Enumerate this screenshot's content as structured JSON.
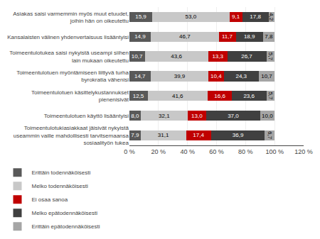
{
  "chart_data": {
    "type": "bar",
    "orientation": "horizontal",
    "stacked": true,
    "data_labels": true,
    "grid": true,
    "legend": "bottom",
    "categories": [
      "Asiakas saisi varmemmin myös muut etuudet,\njoihin hän on oikeutettu",
      "Kansalaisten välinen yhdenvertaisuus lisääntyisi",
      "Toimeentulotukea saisi nykyistä useampi siihen\nlain mukaan oikeutettu",
      "Toimeentulotuen myöntämiseen liittyvä turha\nbyrokratia vähenisi",
      "Toimeentulotuen käsittelykustannukset\npienenisivät",
      "Toimeentulotuen käyttö lisääntyisi",
      "Toimeentulotukiasiakkaat jäisivät nykyistä\nuseammin vaille mahdollisesti tarvitsemaansa\nsosiaalityön tukea"
    ],
    "series": [
      {
        "name": "Erittäin todennäköisesti",
        "color": "#595959",
        "values": [
          15.9,
          14.9,
          10.7,
          14.7,
          12.5,
          8.0,
          7.9
        ],
        "value_labels": [
          "15,9",
          "14,9",
          "10,7",
          "14,7",
          "12,5",
          "8,0",
          "7,9"
        ]
      },
      {
        "name": "Melko todennäköisesti",
        "color": "#c8c8c8",
        "values": [
          53.0,
          46.7,
          43.6,
          39.9,
          41.6,
          32.1,
          31.1
        ],
        "value_labels": [
          "53,0",
          "46,7",
          "43,6",
          "39,9",
          "41,6",
          "32,1",
          "31,1"
        ]
      },
      {
        "name": "Ei osaa sanoa",
        "color": "#c00000",
        "values": [
          9.1,
          11.7,
          13.3,
          10.4,
          16.6,
          13.0,
          17.4
        ],
        "value_labels": [
          "9,1",
          "11,7",
          "13,3",
          "10,4",
          "16,6",
          "13,0",
          "17,4"
        ]
      },
      {
        "name": "Melko epätodennäköisesti",
        "color": "#404040",
        "values": [
          17.8,
          18.9,
          26.7,
          24.3,
          23.6,
          37.0,
          36.9
        ],
        "value_labels": [
          "17,8",
          "18,9",
          "26,7",
          "24,3",
          "23,6",
          "37,0",
          "36,9"
        ]
      },
      {
        "name": "Erittäin epätodennäköisesti",
        "color": "#a5a5a5",
        "values": [
          4.2,
          7.8,
          5.7,
          10.7,
          5.7,
          10.0,
          6.7
        ],
        "value_labels": [
          "4,2",
          "7,8",
          "5,7",
          "10,7",
          "5,7",
          "10,0",
          "6,7"
        ]
      }
    ],
    "xlim": [
      0,
      120
    ],
    "xticks": [
      {
        "value": 0,
        "label": "0 %"
      },
      {
        "value": 20,
        "label": "20 %"
      },
      {
        "value": 40,
        "label": "40 %"
      },
      {
        "value": 60,
        "label": "60 %"
      },
      {
        "value": 80,
        "label": "80 %"
      },
      {
        "value": 100,
        "label": "100 %"
      },
      {
        "value": 120,
        "label": "120 %"
      }
    ]
  }
}
